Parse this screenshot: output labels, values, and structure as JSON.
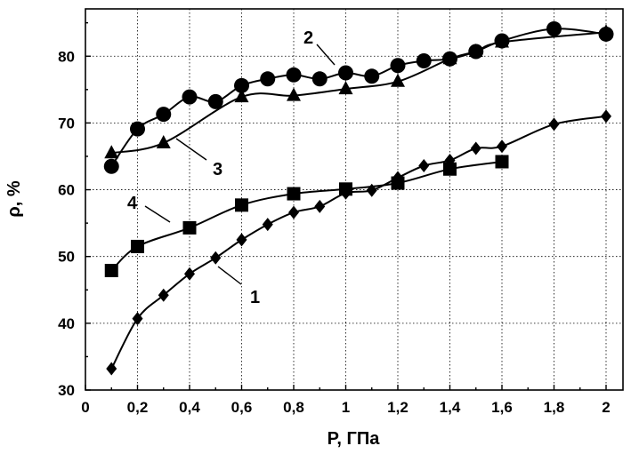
{
  "chart_data": {
    "type": "line",
    "xlabel": "P, ГПа",
    "ylabel": "ρ, %",
    "xlim": [
      0,
      2.1
    ],
    "ylim": [
      30,
      88
    ],
    "x_ticks": [
      0,
      0.2,
      0.4,
      0.6,
      0.8,
      1,
      1.2,
      1.4,
      1.6,
      1.8,
      2
    ],
    "x_tick_labels": [
      "0",
      "0,2",
      "0,4",
      "0,6",
      "0,8",
      "1",
      "1,2",
      "1,4",
      "1,6",
      "1,8",
      "2"
    ],
    "y_ticks": [
      30,
      40,
      50,
      60,
      70,
      80
    ],
    "y_tick_labels": [
      "30",
      "40",
      "50",
      "60",
      "70",
      "80"
    ],
    "grid": true,
    "series": [
      {
        "name": "1",
        "marker": "diamond",
        "points": [
          [
            0.1,
            33.2
          ],
          [
            0.2,
            40.7
          ],
          [
            0.3,
            44.2
          ],
          [
            0.4,
            47.4
          ],
          [
            0.5,
            49.8
          ],
          [
            0.6,
            52.5
          ],
          [
            0.7,
            54.8
          ],
          [
            0.8,
            56.6
          ],
          [
            0.9,
            57.5
          ],
          [
            1.0,
            59.5
          ],
          [
            1.1,
            59.9
          ],
          [
            1.2,
            61.8
          ],
          [
            1.3,
            63.6
          ],
          [
            1.4,
            64.4
          ],
          [
            1.5,
            66.2
          ],
          [
            1.6,
            66.5
          ],
          [
            1.8,
            69.8
          ],
          [
            2.0,
            71.0
          ]
        ]
      },
      {
        "name": "2",
        "marker": "circle",
        "points": [
          [
            0.1,
            63.5
          ],
          [
            0.2,
            69.1
          ],
          [
            0.3,
            71.3
          ],
          [
            0.4,
            73.9
          ],
          [
            0.5,
            73.2
          ],
          [
            0.6,
            75.6
          ],
          [
            0.7,
            76.6
          ],
          [
            0.8,
            77.2
          ],
          [
            0.9,
            76.6
          ],
          [
            1.0,
            77.5
          ],
          [
            1.1,
            77.0
          ],
          [
            1.2,
            78.6
          ],
          [
            1.3,
            79.3
          ],
          [
            1.4,
            79.6
          ],
          [
            1.5,
            80.7
          ],
          [
            1.6,
            82.3
          ],
          [
            1.8,
            84.1
          ],
          [
            2.0,
            83.3
          ]
        ]
      },
      {
        "name": "3",
        "marker": "triangle",
        "points": [
          [
            0.1,
            65.5
          ],
          [
            0.3,
            67.0
          ],
          [
            0.6,
            73.9
          ],
          [
            0.8,
            74.1
          ],
          [
            1.0,
            75.1
          ],
          [
            1.2,
            76.2
          ],
          [
            1.4,
            79.6
          ],
          [
            1.5,
            80.7
          ],
          [
            1.6,
            82.1
          ],
          [
            2.0,
            83.6
          ]
        ]
      },
      {
        "name": "4",
        "marker": "square",
        "points": [
          [
            0.1,
            47.9
          ],
          [
            0.2,
            51.5
          ],
          [
            0.4,
            54.3
          ],
          [
            0.6,
            57.7
          ],
          [
            0.8,
            59.4
          ],
          [
            1.0,
            60.1
          ],
          [
            1.2,
            61.0
          ],
          [
            1.4,
            63.1
          ],
          [
            1.6,
            64.2
          ]
        ]
      }
    ],
    "annotations": [
      "1",
      "2",
      "3",
      "4"
    ]
  }
}
